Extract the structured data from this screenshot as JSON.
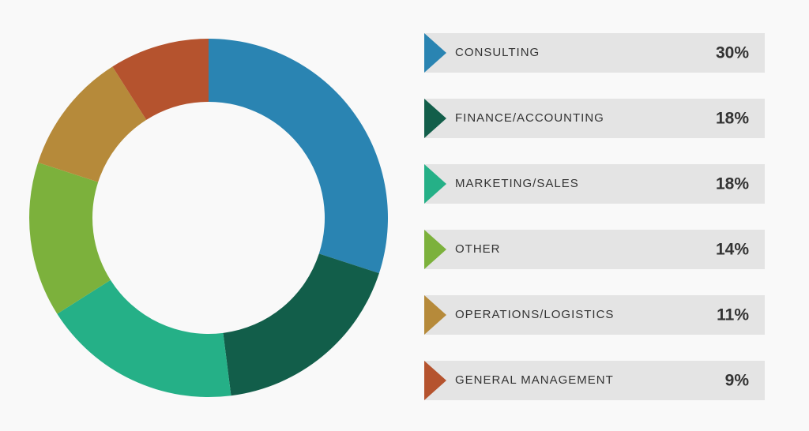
{
  "chart_data": {
    "type": "donut",
    "categories": [
      "CONSULTING",
      "FINANCE/ACCOUNTING",
      "MARKETING/SALES",
      "OTHER",
      "OPERATIONS/LOGISTICS",
      "GENERAL MANAGEMENT"
    ],
    "values": [
      30,
      18,
      18,
      14,
      11,
      9
    ],
    "value_labels": [
      "30%",
      "18%",
      "18%",
      "14%",
      "11%",
      "9%"
    ],
    "colors": [
      "#2a84b2",
      "#125e4a",
      "#25b087",
      "#7cb13c",
      "#b68a3a",
      "#b5532e"
    ]
  }
}
